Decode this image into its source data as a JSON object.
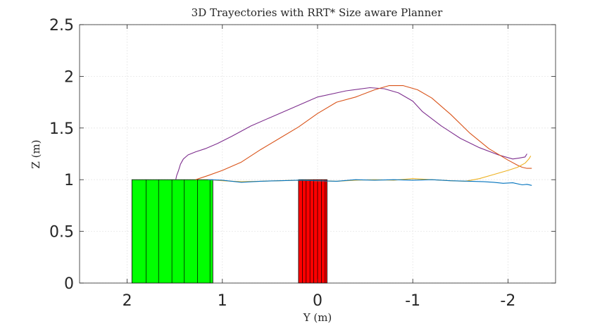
{
  "chart_data": {
    "type": "line",
    "title": "3D Trayectories with RRT* Size aware Planner",
    "xlabel": "Y (m)",
    "ylabel": "Z (m)",
    "xlim": [
      2.5,
      -2.5
    ],
    "ylim": [
      0,
      2.5
    ],
    "x_reversed": true,
    "xticks": [
      2,
      1,
      0,
      -1,
      -2
    ],
    "xtick_labels": [
      "2",
      "1",
      "0",
      "-1",
      "-2"
    ],
    "yticks": [
      0,
      0.5,
      1,
      1.5,
      2,
      2.5
    ],
    "ytick_labels": [
      "0",
      "0.5",
      "1",
      "1.5",
      "2",
      "2.5"
    ],
    "grid": true,
    "obstacles": [
      {
        "name": "green-block",
        "y_from": 1.95,
        "y_to": 1.1,
        "z_from": 0,
        "z_to": 1.0,
        "color": "#00ff00",
        "stripes": [
          1.8,
          1.67,
          1.53,
          1.4,
          1.26,
          1.13
        ]
      },
      {
        "name": "red-block",
        "y_from": 0.2,
        "y_to": -0.1,
        "z_from": 0,
        "z_to": 1.0,
        "color": "#ff0000",
        "stripes": [
          0.16,
          0.12,
          0.08,
          0.04,
          0.0,
          -0.04,
          -0.08
        ]
      }
    ],
    "series": [
      {
        "color": "#7e2f8e",
        "x": [
          1.49,
          1.48,
          1.46,
          1.44,
          1.41,
          1.36,
          1.28,
          1.18,
          1.05,
          0.9,
          0.7,
          0.5,
          0.2,
          0.0,
          -0.3,
          -0.55,
          -0.7,
          -0.85,
          -1.0,
          -1.1,
          -1.3,
          -1.5,
          -1.7,
          -1.9,
          -2.05,
          -2.12,
          -2.18,
          -2.2
        ],
        "y": [
          1.0,
          1.04,
          1.09,
          1.15,
          1.2,
          1.24,
          1.27,
          1.3,
          1.35,
          1.42,
          1.52,
          1.6,
          1.72,
          1.8,
          1.86,
          1.89,
          1.88,
          1.84,
          1.76,
          1.66,
          1.52,
          1.4,
          1.31,
          1.24,
          1.2,
          1.21,
          1.22,
          1.25
        ]
      },
      {
        "color": "#d95319",
        "x": [
          1.28,
          1.15,
          1.0,
          0.8,
          0.6,
          0.4,
          0.2,
          0.0,
          -0.2,
          -0.4,
          -0.6,
          -0.75,
          -0.9,
          -1.05,
          -1.2,
          -1.4,
          -1.6,
          -1.8,
          -2.0,
          -2.1,
          -2.15,
          -2.2,
          -2.25
        ],
        "y": [
          1.0,
          1.04,
          1.09,
          1.17,
          1.29,
          1.4,
          1.51,
          1.64,
          1.75,
          1.8,
          1.87,
          1.91,
          1.91,
          1.87,
          1.79,
          1.63,
          1.45,
          1.3,
          1.19,
          1.14,
          1.12,
          1.11,
          1.11
        ]
      },
      {
        "color": "#edb120",
        "x": [
          1.15,
          1.0,
          0.8,
          0.6,
          0.4,
          0.2,
          0.0,
          -0.2,
          -0.4,
          -0.6,
          -0.8,
          -1.0,
          -1.2,
          -1.4,
          -1.55,
          -1.7,
          -1.85,
          -2.0,
          -2.1,
          -2.18,
          -2.22,
          -2.24
        ],
        "y": [
          1.0,
          0.99,
          0.98,
          0.985,
          0.99,
          0.995,
          0.99,
          0.985,
          0.995,
          1.0,
          0.995,
          1.01,
          1.0,
          0.99,
          0.985,
          1.01,
          1.05,
          1.09,
          1.12,
          1.16,
          1.2,
          1.23
        ]
      },
      {
        "color": "#0072bd",
        "x": [
          1.15,
          1.0,
          0.8,
          0.6,
          0.4,
          0.2,
          0.0,
          -0.2,
          -0.4,
          -0.6,
          -0.8,
          -1.0,
          -1.2,
          -1.4,
          -1.6,
          -1.75,
          -1.85,
          -1.95,
          -2.05,
          -2.15,
          -2.2,
          -2.25
        ],
        "y": [
          1.0,
          0.995,
          0.975,
          0.985,
          0.99,
          0.995,
          0.99,
          0.985,
          1.0,
          0.995,
          1.0,
          0.995,
          1.0,
          0.99,
          0.985,
          0.98,
          0.975,
          0.965,
          0.97,
          0.95,
          0.955,
          0.945
        ]
      }
    ]
  }
}
